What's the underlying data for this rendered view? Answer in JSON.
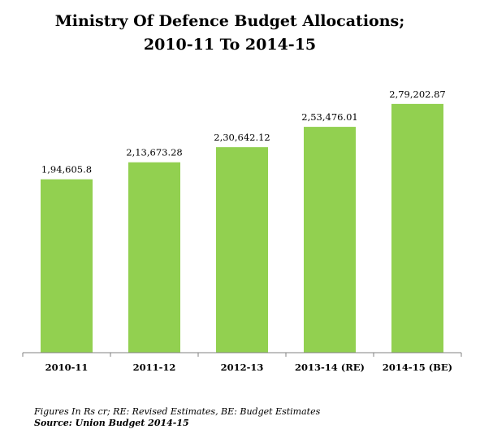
{
  "chart_data": {
    "type": "bar",
    "title_line1": "Ministry Of Defence Budget Allocations;",
    "title_line2": "2010-11 To 2014-15",
    "categories": [
      "2010-11",
      "2011-12",
      "2012-13",
      "2013-14 (RE)",
      "2014-15 (BE)"
    ],
    "values": [
      194605.8,
      213673.28,
      230642.12,
      253476.01,
      279202.87
    ],
    "value_labels": [
      "1,94,605.8",
      "2,13,673.28",
      "2,30,642.12",
      "2,53,476.01",
      "2,79,202.87"
    ],
    "xlabel": "",
    "ylabel": "",
    "ylim": [
      0,
      300000
    ],
    "bar_color": "#92d050",
    "axis_color": "#808080",
    "grid": false,
    "legend": "none"
  },
  "notes": {
    "figures": "Figures In Rs cr; RE: Revised Estimates, BE: Budget Estimates",
    "source": "Source: Union Budget 2014-15"
  }
}
